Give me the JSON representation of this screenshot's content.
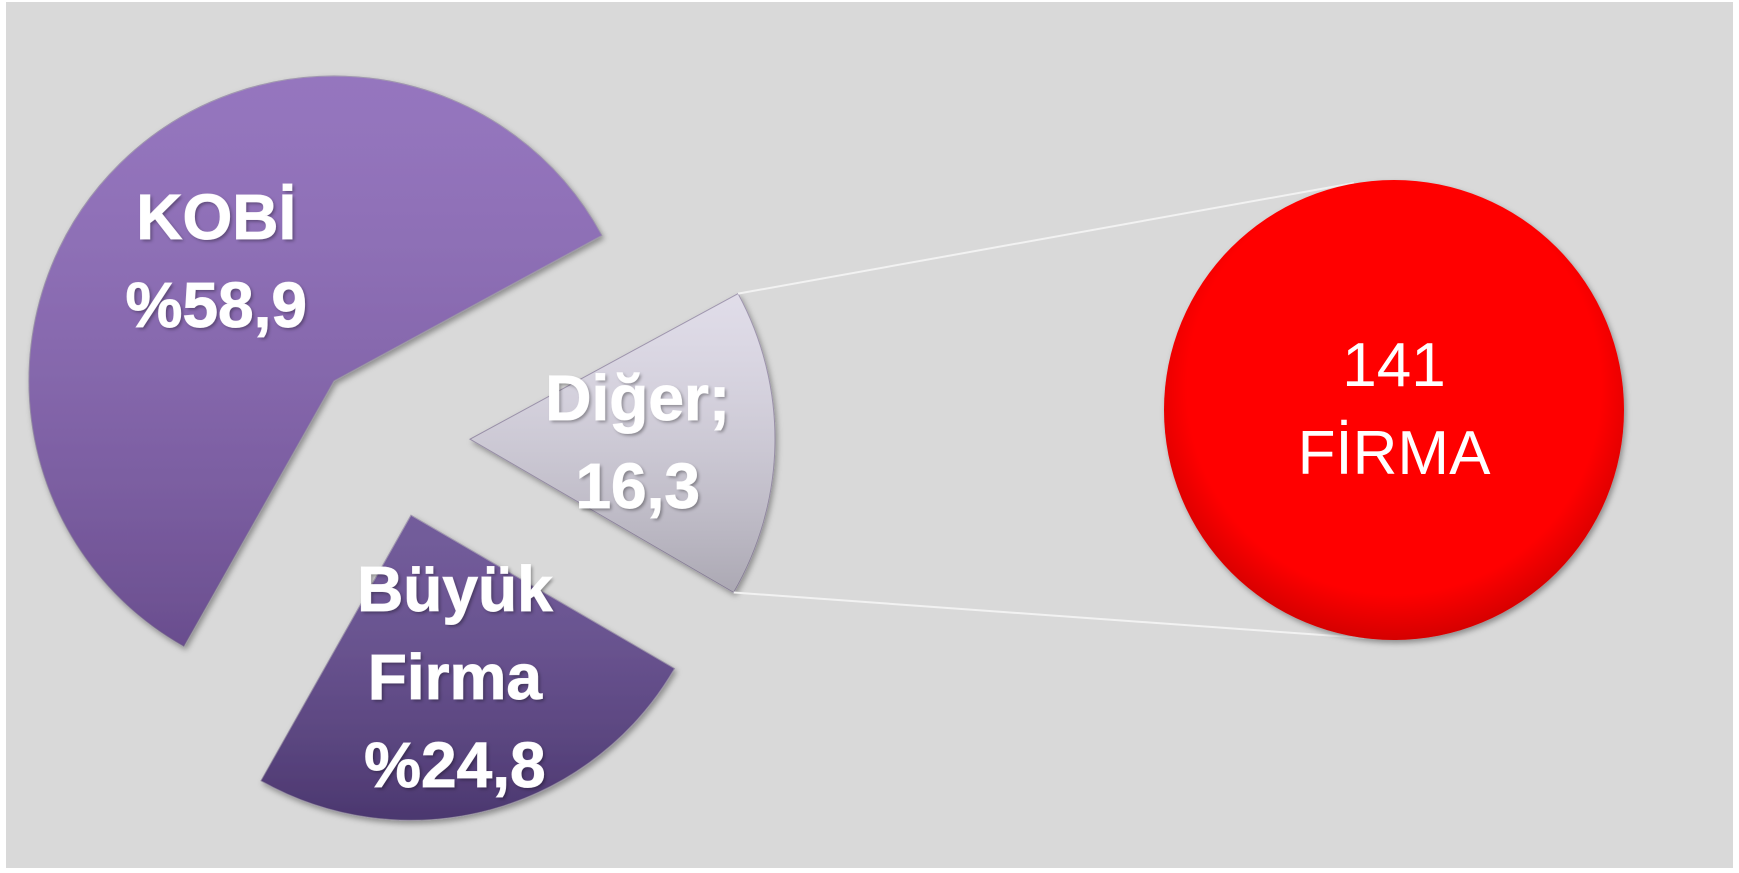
{
  "chart_data": {
    "type": "pie",
    "categories": [
      "KOBİ",
      "Büyük Firma",
      "Diğer;"
    ],
    "values": [
      58.9,
      24.8,
      16.3
    ],
    "value_labels": [
      "%58,9",
      "%24,8",
      "16,3"
    ],
    "colors": [
      "#8763b6",
      "#60468e",
      "#dcd8e6"
    ],
    "callout": {
      "lines": [
        "141",
        "FİRMA"
      ],
      "color": "#ff0000"
    }
  }
}
